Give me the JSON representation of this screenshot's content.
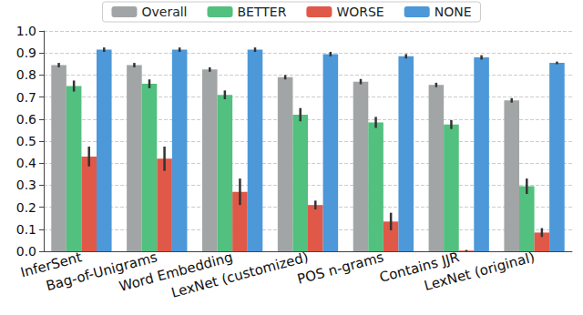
{
  "chart_data": {
    "type": "bar",
    "categories": [
      "InferSent",
      "Bag-of-Unigrams",
      "Word Embedding",
      "LexNet (customized)",
      "POS n-grams",
      "Contains JJR",
      "LexNet (original)"
    ],
    "series": [
      {
        "name": "Overall",
        "color": "#a2a5a5",
        "values": [
          0.845,
          0.845,
          0.825,
          0.79,
          0.77,
          0.755,
          0.685
        ],
        "errors": [
          0.01,
          0.01,
          0.01,
          0.01,
          0.012,
          0.01,
          0.01
        ]
      },
      {
        "name": "BETTER",
        "color": "#52c07f",
        "values": [
          0.75,
          0.76,
          0.71,
          0.62,
          0.585,
          0.575,
          0.295
        ],
        "errors": [
          0.025,
          0.02,
          0.02,
          0.03,
          0.025,
          0.02,
          0.035
        ]
      },
      {
        "name": "WORSE",
        "color": "#e05848",
        "values": [
          0.43,
          0.42,
          0.27,
          0.21,
          0.135,
          0.003,
          0.085
        ],
        "errors": [
          0.045,
          0.055,
          0.06,
          0.02,
          0.04,
          0.003,
          0.02
        ]
      },
      {
        "name": "NONE",
        "color": "#4c98d8",
        "values": [
          0.915,
          0.915,
          0.915,
          0.895,
          0.885,
          0.88,
          0.855
        ],
        "errors": [
          0.01,
          0.01,
          0.01,
          0.01,
          0.01,
          0.01,
          0.006
        ]
      }
    ],
    "ylim": [
      0,
      1.0
    ],
    "yticks": [
      {
        "value": 0,
        "label": "0.0"
      },
      0.1,
      0.2,
      0.3,
      0.4,
      0.5,
      0.6,
      0.7,
      0.8,
      0.9,
      {
        "value": 1.0,
        "label": "1.0"
      }
    ],
    "grid": true,
    "legend": "top"
  }
}
